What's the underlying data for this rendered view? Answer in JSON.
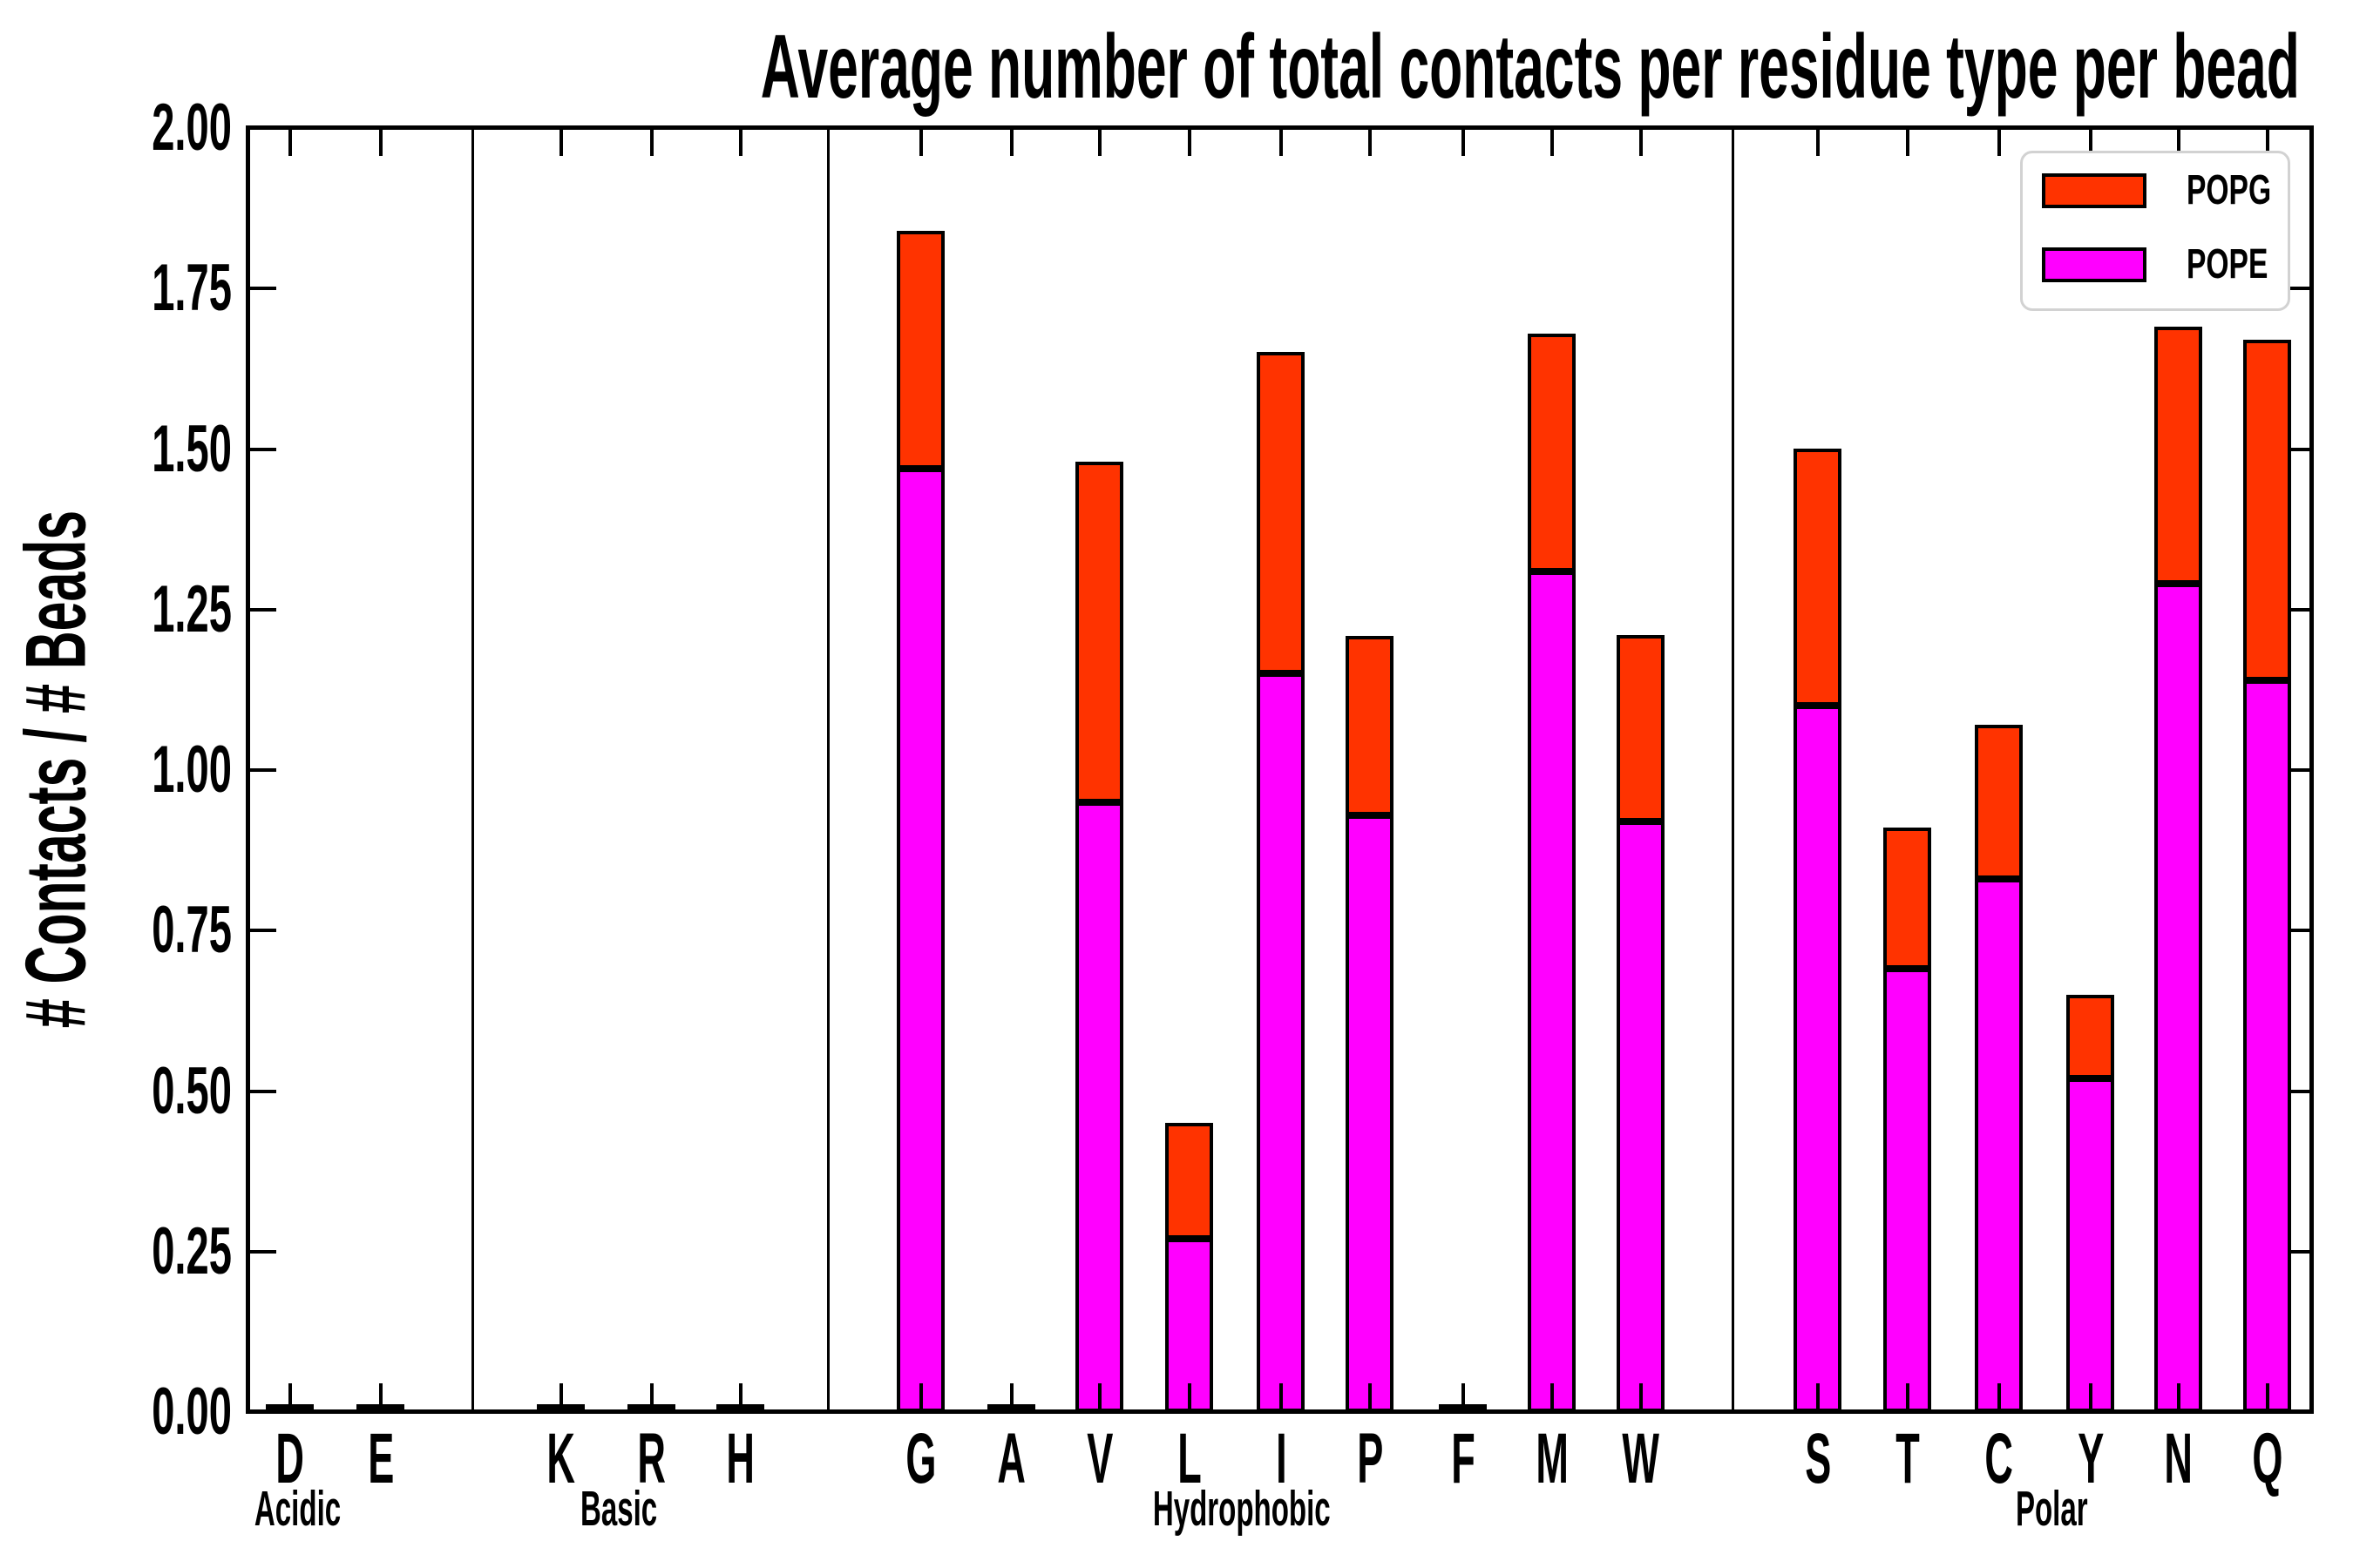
{
  "title": "Average number of total contacts per residue type per bead",
  "ylabel": "# Contacts / # Beads",
  "legend": {
    "position": "upper right",
    "items": [
      {
        "label": "POPG",
        "color": "#FF3300"
      },
      {
        "label": "POPE",
        "color": "#FF00FF"
      }
    ]
  },
  "chart_data": {
    "type": "bar",
    "stacked": true,
    "title": "Average number of total contacts per residue type per bead",
    "xlabel": "",
    "ylabel": "# Contacts / # Beads",
    "ylim": [
      0,
      2
    ],
    "ytick_step": 0.25,
    "ytick_labels": [
      "0.00",
      "0.25",
      "0.50",
      "0.75",
      "1.00",
      "1.25",
      "1.50",
      "1.75",
      "2.00"
    ],
    "grid": false,
    "legend_position": "upper right",
    "categories": [
      "D",
      "E",
      "K",
      "R",
      "H",
      "G",
      "A",
      "V",
      "L",
      "I",
      "P",
      "F",
      "M",
      "W",
      "S",
      "T",
      "C",
      "Y",
      "N",
      "Q"
    ],
    "groups": [
      {
        "label": "Acidic",
        "categories": [
          "D",
          "E"
        ]
      },
      {
        "label": "Basic",
        "categories": [
          "K",
          "R",
          "H"
        ]
      },
      {
        "label": "Hydrophobic",
        "categories": [
          "G",
          "A",
          "V",
          "L",
          "I",
          "P",
          "F",
          "M",
          "W"
        ]
      },
      {
        "label": "Polar",
        "categories": [
          "S",
          "T",
          "C",
          "Y",
          "N",
          "Q"
        ]
      }
    ],
    "series": [
      {
        "name": "POPE",
        "color": "#FF00FF",
        "values": [
          0,
          0,
          0,
          0,
          0,
          1.47,
          0,
          0.95,
          0.27,
          1.15,
          0.93,
          0,
          1.31,
          0.92,
          1.1,
          0.69,
          0.83,
          0.52,
          1.29,
          1.14
        ]
      },
      {
        "name": "POPG",
        "color": "#FF3300",
        "values": [
          0,
          0,
          0,
          0,
          0,
          0.37,
          0,
          0.53,
          0.18,
          0.5,
          0.28,
          0,
          0.37,
          0.29,
          0.4,
          0.22,
          0.24,
          0.13,
          0.4,
          0.53
        ]
      }
    ],
    "totals": [
      0,
      0,
      0,
      0,
      0,
      1.84,
      0,
      1.48,
      0.45,
      1.65,
      1.21,
      0,
      1.68,
      1.21,
      1.5,
      0.91,
      1.07,
      0.65,
      1.69,
      1.67
    ]
  }
}
